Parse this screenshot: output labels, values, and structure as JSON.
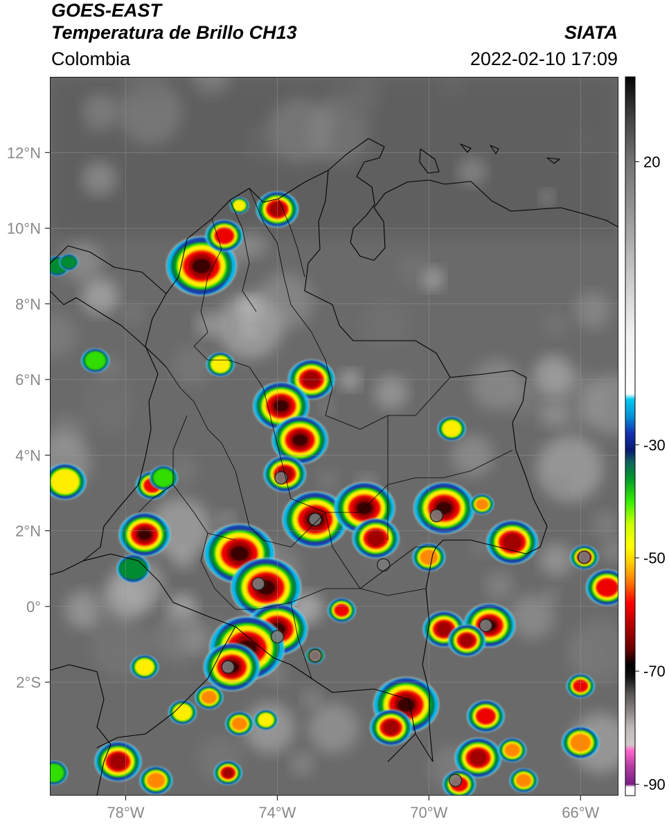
{
  "header": {
    "satellite": "GOES-EAST",
    "product": "Temperatura de Brillo CH13",
    "region": "Colombia",
    "agency": "SIATA",
    "timestamp": "2022-02-10 17:09"
  },
  "map": {
    "lon_range": [
      -80.0,
      -65.0
    ],
    "lat_range": [
      -5.0,
      14.0
    ],
    "lon_ticks": [
      {
        "value": -78,
        "label": "78°W"
      },
      {
        "value": -74,
        "label": "74°W"
      },
      {
        "value": -70,
        "label": "70°W"
      },
      {
        "value": -66,
        "label": "66°W"
      }
    ],
    "lat_ticks": [
      {
        "value": 12,
        "label": "12°N"
      },
      {
        "value": 10,
        "label": "10°N"
      },
      {
        "value": 8,
        "label": "8°N"
      },
      {
        "value": 6,
        "label": "6°N"
      },
      {
        "value": 4,
        "label": "4°N"
      },
      {
        "value": 2,
        "label": "2°N"
      },
      {
        "value": 0,
        "label": "0°"
      },
      {
        "value": -2,
        "label": "2°S"
      }
    ],
    "background_color": "#6a6a6a",
    "gridlines": true
  },
  "storms": [
    {
      "lon": -76.0,
      "lat": 9.0,
      "r": 0.75,
      "intensity": 0.9
    },
    {
      "lon": -75.4,
      "lat": 9.8,
      "r": 0.4,
      "intensity": 0.7
    },
    {
      "lon": -74.0,
      "lat": 10.5,
      "r": 0.45,
      "intensity": 0.85
    },
    {
      "lon": -75.0,
      "lat": 10.6,
      "r": 0.2,
      "intensity": 0.5
    },
    {
      "lon": -79.8,
      "lat": 9.0,
      "r": 0.25,
      "intensity": 0.4
    },
    {
      "lon": -75.5,
      "lat": 6.4,
      "r": 0.3,
      "intensity": 0.5
    },
    {
      "lon": -78.8,
      "lat": 6.5,
      "r": 0.3,
      "intensity": 0.45
    },
    {
      "lon": -73.1,
      "lat": 6.0,
      "r": 0.5,
      "intensity": 0.85
    },
    {
      "lon": -73.9,
      "lat": 5.3,
      "r": 0.6,
      "intensity": 0.9
    },
    {
      "lon": -73.4,
      "lat": 4.4,
      "r": 0.6,
      "intensity": 0.9
    },
    {
      "lon": -73.8,
      "lat": 3.5,
      "r": 0.45,
      "intensity": 0.8
    },
    {
      "lon": -69.4,
      "lat": 4.7,
      "r": 0.3,
      "intensity": 0.55
    },
    {
      "lon": -79.6,
      "lat": 3.3,
      "r": 0.45,
      "intensity": 0.5
    },
    {
      "lon": -77.3,
      "lat": 3.2,
      "r": 0.35,
      "intensity": 0.7
    },
    {
      "lon": -77.5,
      "lat": 1.9,
      "r": 0.55,
      "intensity": 0.95
    },
    {
      "lon": -75.0,
      "lat": 1.4,
      "r": 0.75,
      "intensity": 0.95
    },
    {
      "lon": -73.0,
      "lat": 2.3,
      "r": 0.7,
      "intensity": 0.95
    },
    {
      "lon": -71.7,
      "lat": 2.6,
      "r": 0.65,
      "intensity": 0.9
    },
    {
      "lon": -71.4,
      "lat": 1.8,
      "r": 0.5,
      "intensity": 0.8
    },
    {
      "lon": -69.6,
      "lat": 2.6,
      "r": 0.65,
      "intensity": 0.95
    },
    {
      "lon": -68.6,
      "lat": 2.7,
      "r": 0.25,
      "intensity": 0.6
    },
    {
      "lon": -67.8,
      "lat": 1.7,
      "r": 0.55,
      "intensity": 0.8
    },
    {
      "lon": -65.9,
      "lat": 1.3,
      "r": 0.3,
      "intensity": 0.8
    },
    {
      "lon": -65.3,
      "lat": 0.5,
      "r": 0.45,
      "intensity": 0.75
    },
    {
      "lon": -70.0,
      "lat": 1.3,
      "r": 0.35,
      "intensity": 0.6
    },
    {
      "lon": -77.8,
      "lat": 1.0,
      "r": 0.35,
      "intensity": 0.4
    },
    {
      "lon": -74.3,
      "lat": 0.5,
      "r": 0.75,
      "intensity": 0.95
    },
    {
      "lon": -74.0,
      "lat": -0.6,
      "r": 0.65,
      "intensity": 0.95
    },
    {
      "lon": -74.8,
      "lat": -1.1,
      "r": 0.8,
      "intensity": 0.95
    },
    {
      "lon": -75.2,
      "lat": -1.6,
      "r": 0.6,
      "intensity": 0.9
    },
    {
      "lon": -72.3,
      "lat": -0.1,
      "r": 0.3,
      "intensity": 0.7
    },
    {
      "lon": -73.0,
      "lat": -1.3,
      "r": 0.2,
      "intensity": 0.85
    },
    {
      "lon": -69.6,
      "lat": -0.6,
      "r": 0.45,
      "intensity": 0.85
    },
    {
      "lon": -68.4,
      "lat": -0.5,
      "r": 0.55,
      "intensity": 0.95
    },
    {
      "lon": -69.0,
      "lat": -0.9,
      "r": 0.4,
      "intensity": 0.85
    },
    {
      "lon": -77.5,
      "lat": -1.6,
      "r": 0.3,
      "intensity": 0.5
    },
    {
      "lon": -76.5,
      "lat": -2.8,
      "r": 0.3,
      "intensity": 0.5
    },
    {
      "lon": -75.8,
      "lat": -2.4,
      "r": 0.3,
      "intensity": 0.6
    },
    {
      "lon": -75.0,
      "lat": -3.1,
      "r": 0.3,
      "intensity": 0.6
    },
    {
      "lon": -74.3,
      "lat": -3.0,
      "r": 0.25,
      "intensity": 0.5
    },
    {
      "lon": -70.6,
      "lat": -2.6,
      "r": 0.7,
      "intensity": 0.95
    },
    {
      "lon": -71.0,
      "lat": -3.2,
      "r": 0.45,
      "intensity": 0.8
    },
    {
      "lon": -68.5,
      "lat": -2.9,
      "r": 0.4,
      "intensity": 0.7
    },
    {
      "lon": -68.7,
      "lat": -4.0,
      "r": 0.5,
      "intensity": 0.85
    },
    {
      "lon": -67.8,
      "lat": -3.8,
      "r": 0.3,
      "intensity": 0.6
    },
    {
      "lon": -66.0,
      "lat": -2.1,
      "r": 0.3,
      "intensity": 0.7
    },
    {
      "lon": -66.0,
      "lat": -3.6,
      "r": 0.4,
      "intensity": 0.6
    },
    {
      "lon": -75.3,
      "lat": -4.4,
      "r": 0.3,
      "intensity": 0.85
    },
    {
      "lon": -78.2,
      "lat": -4.1,
      "r": 0.5,
      "intensity": 0.8
    },
    {
      "lon": -77.2,
      "lat": -4.6,
      "r": 0.35,
      "intensity": 0.6
    },
    {
      "lon": -79.9,
      "lat": -4.4,
      "r": 0.3,
      "intensity": 0.45
    },
    {
      "lon": -69.2,
      "lat": -4.7,
      "r": 0.35,
      "intensity": 0.7
    },
    {
      "lon": -67.5,
      "lat": -4.6,
      "r": 0.3,
      "intensity": 0.6
    },
    {
      "lon": -79.5,
      "lat": 9.1,
      "r": 0.2,
      "intensity": 0.4
    },
    {
      "lon": -77.0,
      "lat": 3.4,
      "r": 0.3,
      "intensity": 0.45
    }
  ],
  "cold_cores": [
    {
      "lon": -69.8,
      "lat": 2.4
    },
    {
      "lon": -65.9,
      "lat": 1.3
    },
    {
      "lon": -74.0,
      "lat": -0.8
    },
    {
      "lon": -74.5,
      "lat": 0.6
    },
    {
      "lon": -73.9,
      "lat": 3.4
    },
    {
      "lon": -73.0,
      "lat": 2.3
    },
    {
      "lon": -71.2,
      "lat": 1.1
    },
    {
      "lon": -68.5,
      "lat": -0.5
    },
    {
      "lon": -75.3,
      "lat": -1.6
    },
    {
      "lon": -73.0,
      "lat": -1.3
    },
    {
      "lon": -69.3,
      "lat": -4.6
    }
  ],
  "colorbar": {
    "ticks": [
      {
        "value": 20,
        "label": "20"
      },
      {
        "value": -30,
        "label": "-30"
      },
      {
        "value": -50,
        "label": "-50"
      },
      {
        "value": -70,
        "label": "-70"
      },
      {
        "value": -90,
        "label": "-90"
      }
    ],
    "range": [
      -92,
      35
    ],
    "stops": [
      {
        "v": -92,
        "c": "#ffffff"
      },
      {
        "v": -90.5,
        "c": "#ffffff"
      },
      {
        "v": -90,
        "c": "#7a1f86"
      },
      {
        "v": -87,
        "c": "#b23aa0"
      },
      {
        "v": -84,
        "c": "#ff66cc"
      },
      {
        "v": -83,
        "c": "#d0c8c8"
      },
      {
        "v": -80,
        "c": "#c0b8b8"
      },
      {
        "v": -77,
        "c": "#8a8484"
      },
      {
        "v": -74,
        "c": "#5a5555"
      },
      {
        "v": -71,
        "c": "#111111"
      },
      {
        "v": -69,
        "c": "#000000"
      },
      {
        "v": -66,
        "c": "#6b0000"
      },
      {
        "v": -62,
        "c": "#b00000"
      },
      {
        "v": -58,
        "c": "#ff0000"
      },
      {
        "v": -54,
        "c": "#ff8000"
      },
      {
        "v": -51,
        "c": "#ffc800"
      },
      {
        "v": -48,
        "c": "#ffff00"
      },
      {
        "v": -44,
        "c": "#ccff00"
      },
      {
        "v": -40,
        "c": "#33ee00"
      },
      {
        "v": -36,
        "c": "#009a2a"
      },
      {
        "v": -33,
        "c": "#106060"
      },
      {
        "v": -31,
        "c": "#0a1a70"
      },
      {
        "v": -28,
        "c": "#1530b0"
      },
      {
        "v": -25,
        "c": "#0090d8"
      },
      {
        "v": -22,
        "c": "#00c8f0"
      },
      {
        "v": -21,
        "c": "#ffffff"
      },
      {
        "v": -10,
        "c": "#f0f0f0"
      },
      {
        "v": 0,
        "c": "#c8c8c8"
      },
      {
        "v": 10,
        "c": "#9a9a9a"
      },
      {
        "v": 20,
        "c": "#737373"
      },
      {
        "v": 28,
        "c": "#404040"
      },
      {
        "v": 35,
        "c": "#050505"
      }
    ]
  }
}
